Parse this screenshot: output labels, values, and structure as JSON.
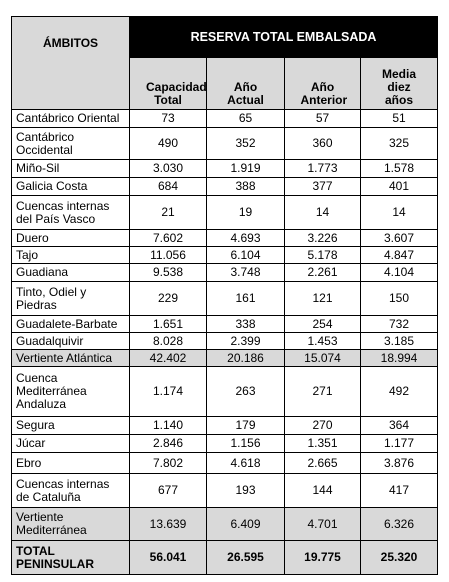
{
  "table": {
    "header": {
      "ambitos": "ÁMBITOS",
      "group": "RESERVA TOTAL EMBALSADA",
      "columns": [
        "Capacidad Total",
        "Año Actual",
        "Año Anterior",
        "Media diez años"
      ]
    },
    "rows": [
      [
        "Cantábrico Oriental",
        "73",
        "65",
        "57",
        "51"
      ],
      [
        "Cantábrico Occidental",
        "490",
        "352",
        "360",
        "325"
      ],
      [
        "Miño-Sil",
        "3.030",
        "1.919",
        "1.773",
        "1.578"
      ],
      [
        "Galicia Costa",
        "684",
        "388",
        "377",
        "401"
      ],
      [
        "Cuencas internas del País Vasco",
        "21",
        "19",
        "14",
        "14"
      ],
      [
        "Duero",
        "7.602",
        "4.693",
        "3.226",
        "3.607"
      ],
      [
        "Tajo",
        "11.056",
        "6.104",
        "5.178",
        "4.847"
      ],
      [
        "Guadiana",
        "9.538",
        "3.748",
        "2.261",
        "4.104"
      ],
      [
        "Tinto, Odiel y Piedras",
        "229",
        "161",
        "121",
        "150"
      ],
      [
        "Guadalete-Barbate",
        "1.651",
        "338",
        "254",
        "732"
      ],
      [
        "Guadalquivir",
        "8.028",
        "2.399",
        "1.453",
        "3.185"
      ],
      [
        "Vertiente Atlántica",
        "42.402",
        "20.186",
        "15.074",
        "18.994"
      ],
      [
        "Cuenca Mediterránea Andaluza",
        "1.174",
        "263",
        "271",
        "492"
      ],
      [
        "Segura",
        "1.140",
        "179",
        "270",
        "364"
      ],
      [
        "Júcar",
        "2.846",
        "1.156",
        "1.351",
        "1.177"
      ],
      [
        "Ebro",
        "7.802",
        "4.618",
        "2.665",
        "3.876"
      ],
      [
        "Cuencas internas de Cataluña",
        "677",
        "193",
        "144",
        "417"
      ],
      [
        "Vertiente Mediterránea",
        "13.639",
        "6.409",
        "4.701",
        "6.326"
      ],
      [
        "TOTAL PENINSULAR",
        "56.041",
        "26.595",
        "19.775",
        "25.320"
      ]
    ]
  }
}
